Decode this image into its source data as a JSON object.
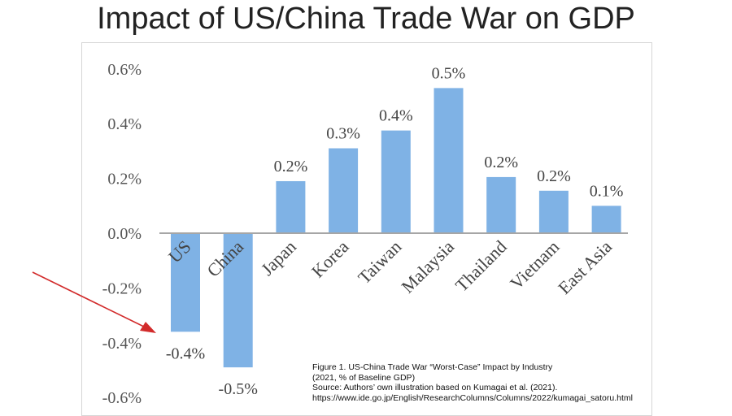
{
  "title": "Impact of US/China Trade War on GDP",
  "caption": {
    "line1": "Figure 1. US-China Trade War “Worst-Case” Impact by Industry",
    "line2": "(2021, % of Baseline GDP)",
    "line3": "Source: Authors’ own illustration based on Kumagai et al. (2021).",
    "line4": "https://www.ide.go.jp/English/ResearchColumns/Columns/2022/kumagai_satoru.html"
  },
  "annotation": {
    "arrow_icon": "red-arrow-icon",
    "color": "#d22b2b"
  },
  "chart_data": {
    "type": "bar",
    "categories": [
      "US",
      "China",
      "Japan",
      "Korea",
      "Taiwan",
      "Malaysia",
      "Thailand",
      "Vietnam",
      "East Asia"
    ],
    "values": [
      -0.36,
      -0.49,
      0.19,
      0.31,
      0.375,
      0.53,
      0.205,
      0.155,
      0.1
    ],
    "data_labels": [
      "-0.4%",
      "-0.5%",
      "0.2%",
      "0.3%",
      "0.4%",
      "0.5%",
      "0.2%",
      "0.2%",
      "0.1%"
    ],
    "yticks": [
      0.6,
      0.4,
      0.2,
      0.0,
      -0.2,
      -0.4,
      -0.6
    ],
    "ytick_labels": [
      "0.6%",
      "0.4%",
      "0.2%",
      "0.0%",
      "-0.2%",
      "-0.4%",
      "-0.6%"
    ],
    "ylim": [
      -0.6,
      0.6
    ],
    "grid": false,
    "colors": {
      "bar": "#7fb2e5",
      "axis": "#a6a6a6"
    }
  }
}
